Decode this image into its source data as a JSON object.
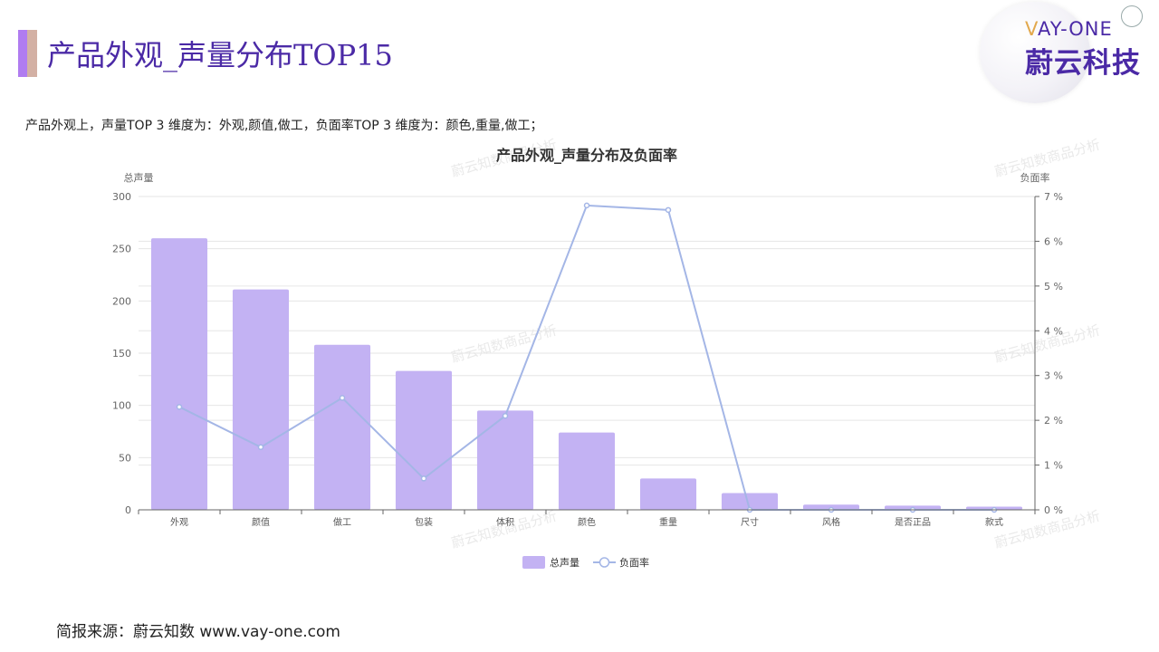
{
  "page": {
    "title": "产品外观_声量分布TOP15",
    "summary": "产品外观上，声量TOP 3 维度为：外观,颜值,做工，负面率TOP 3 维度为：颜色,重量,做工；",
    "footer": "简报来源：蔚云知数 www.vay-one.com"
  },
  "logo": {
    "en_first": "V",
    "en_rest": "AY-ONE",
    "cn": "蔚云科技"
  },
  "watermark": "蔚云知数商品分析",
  "colors": {
    "bar": "#c3b2f3",
    "line": "#a4b6e6",
    "title": "#4b2aa6"
  },
  "chart_data": {
    "type": "bar",
    "title": "产品外观_声量分布及负面率",
    "categories": [
      "外观",
      "颜值",
      "做工",
      "包装",
      "体积",
      "颜色",
      "重量",
      "尺寸",
      "风格",
      "是否正品",
      "款式"
    ],
    "series": [
      {
        "name": "总声量",
        "type": "bar",
        "axis": "left",
        "values": [
          260,
          211,
          158,
          133,
          95,
          74,
          30,
          16,
          5,
          4,
          3
        ]
      },
      {
        "name": "负面率",
        "type": "line",
        "axis": "right",
        "values": [
          2.3,
          1.4,
          2.5,
          0.7,
          2.1,
          6.8,
          6.7,
          0.0,
          0.0,
          0.0,
          0.0
        ]
      }
    ],
    "ylabel_left": "总声量",
    "ylabel_right": "负面率",
    "ylim_left": [
      0,
      300
    ],
    "ylim_right": [
      0,
      7
    ],
    "yticks_left": [
      0,
      50,
      100,
      150,
      200,
      250,
      300
    ],
    "yticks_right": [
      "0 %",
      "1 %",
      "2 %",
      "3 %",
      "4 %",
      "5 %",
      "6 %",
      "7 %"
    ],
    "grid": true,
    "legend": "bottom-center"
  }
}
